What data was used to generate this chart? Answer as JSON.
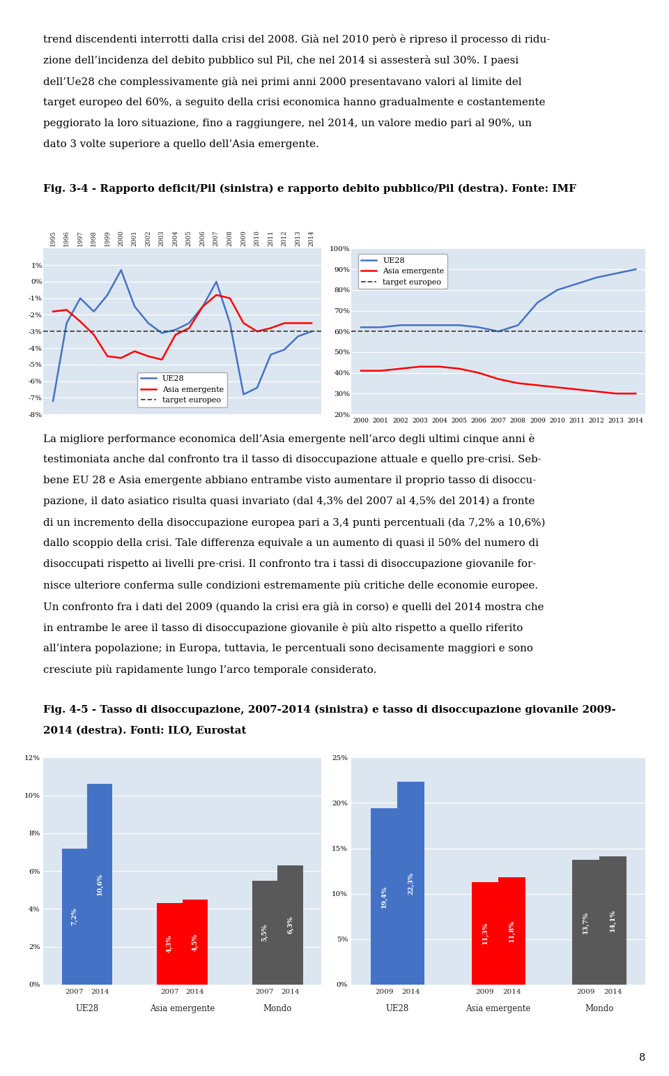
{
  "page_bg": "#ffffff",
  "text_color": "#000000",
  "fig_bg": "#dce6f1",
  "para1_lines": [
    "trend discendenti interrotti dalla crisi del 2008. Già nel 2010 però è ripreso il processo di ridu-",
    "zione dell’incidenza del debito pubblico sul Pil, che nel 2014 si assesterà sul 30%. I paesi",
    "dell’Ue28 che complessivamente già nei primi anni 2000 presentavano valori al limite del",
    "target europeo del 60%, a seguito della crisi economica hanno gradualmente e costantemente",
    "peggiorato la loro situazione, fino a raggiungere, nel 2014, un valore medio pari al 90%, un",
    "dato 3 volte superiore a quello dell’Asia emergente."
  ],
  "fig34_title": "Fig. 3-4 - Rapporto deficit/Pil (sinistra) e rapporto debito pubblico/Pil (destra). Fonte: IMF",
  "deficit_years": [
    1995,
    1996,
    1997,
    1998,
    1999,
    2000,
    2001,
    2002,
    2003,
    2004,
    2005,
    2006,
    2007,
    2008,
    2009,
    2010,
    2011,
    2012,
    2013,
    2014
  ],
  "deficit_ue28": [
    -7.2,
    -2.5,
    -1.0,
    -1.8,
    -0.8,
    0.7,
    -1.5,
    -2.5,
    -3.1,
    -2.9,
    -2.5,
    -1.5,
    0.0,
    -2.5,
    -6.8,
    -6.4,
    -4.4,
    -4.1,
    -3.3,
    -3.0
  ],
  "deficit_asia": [
    -1.8,
    -1.7,
    -2.4,
    -3.2,
    -4.5,
    -4.6,
    -4.2,
    -4.5,
    -4.7,
    -3.2,
    -2.8,
    -1.5,
    -0.8,
    -1.0,
    -2.5,
    -3.0,
    -2.8,
    -2.5,
    -2.5,
    -2.5
  ],
  "deficit_target": -3.0,
  "deficit_ylim": [
    -8,
    2
  ],
  "deficit_yticks": [
    1,
    0,
    -1,
    -2,
    -3,
    -4,
    -5,
    -6,
    -7,
    -8
  ],
  "deficit_ytick_labels": [
    "1%",
    "0%",
    "-1%",
    "-2%",
    "-3%",
    "-4%",
    "-5%",
    "-6%",
    "-7%",
    "-8%"
  ],
  "debt_years": [
    2000,
    2001,
    2002,
    2003,
    2004,
    2005,
    2006,
    2007,
    2008,
    2009,
    2010,
    2011,
    2012,
    2013,
    2014
  ],
  "debt_ue28": [
    62,
    62,
    63,
    63,
    63,
    63,
    62,
    60,
    63,
    74,
    80,
    83,
    86,
    88,
    90
  ],
  "debt_asia": [
    41,
    41,
    42,
    43,
    43,
    42,
    40,
    37,
    35,
    34,
    33,
    32,
    31,
    30,
    30
  ],
  "debt_target": 60,
  "debt_ylim": [
    20,
    100
  ],
  "debt_yticks": [
    20,
    30,
    40,
    50,
    60,
    70,
    80,
    90,
    100
  ],
  "debt_ytick_labels": [
    "20%",
    "30%",
    "40%",
    "50%",
    "60%",
    "70%",
    "80%",
    "90%",
    "100%"
  ],
  "ue28_color": "#4472c4",
  "asia_color": "#ff0000",
  "target_color": "#404040",
  "para2_lines": [
    "La migliore performance economica dell’Asia emergente nell’arco degli ultimi cinque anni è",
    "testimoniata anche dal confronto tra il tasso di disoccupazione attuale e quello pre-crisi. Seb-",
    "bene EU 28 e Asia emergente abbiano entrambe visto aumentare il proprio tasso di disoccu-",
    "pazione, il dato asiatico risulta quasi invariato (dal 4,3% del 2007 al 4,5% del 2014) a fronte",
    "di un incremento della disoccupazione europea pari a 3,4 punti percentuali (da 7,2% a 10,6%)",
    "dallo scoppio della crisi. Tale differenza equivale a un aumento di quasi il 50% del numero di",
    "disoccupati rispetto ai livelli pre-crisi. Il confronto tra i tassi di disoccupazione giovanile for-",
    "nisce ulteriore conferma sulle condizioni estremamente più critiche delle economie europee.",
    "Un confronto fra i dati del 2009 (quando la crisi era già in corso) e quelli del 2014 mostra che",
    "in entrambe le aree il tasso di disoccupazione giovanile è più alto rispetto a quello riferito",
    "all’intera popolazione; in Europa, tuttavia, le percentuali sono decisamente maggiori e sono",
    "cresciute più rapidamente lungo l’arco temporale considerato."
  ],
  "fig45_title_line1": "Fig. 4-5 - Tasso di disoccupazione, 2007-2014 (sinistra) e tasso di disoccupazione giovanile 2009-",
  "fig45_title_line2": "2014 (destra). Fonti: ILO, Eurostat",
  "unemp_values_ue28": [
    7.2,
    10.6
  ],
  "unemp_values_asia": [
    4.3,
    4.5
  ],
  "unemp_values_mondo": [
    5.5,
    6.3
  ],
  "unemp_ylim": [
    0,
    12
  ],
  "unemp_yticks": [
    0,
    2,
    4,
    6,
    8,
    10,
    12
  ],
  "unemp_ytick_labels": [
    "0%",
    "2%",
    "4%",
    "6%",
    "8%",
    "10%",
    "12%"
  ],
  "unemp_labels_ue28": [
    "7,2%",
    "10,6%"
  ],
  "unemp_labels_asia": [
    "4,3%",
    "4,5%"
  ],
  "unemp_labels_mondo": [
    "5,5%",
    "6,3%"
  ],
  "youth_values_ue28": [
    19.4,
    22.3
  ],
  "youth_values_asia": [
    11.3,
    11.8
  ],
  "youth_values_mondo": [
    13.7,
    14.1
  ],
  "youth_ylim": [
    0,
    25
  ],
  "youth_yticks": [
    0,
    5,
    10,
    15,
    20,
    25
  ],
  "youth_ytick_labels": [
    "0%",
    "5%",
    "10%",
    "15%",
    "20%",
    "25%"
  ],
  "youth_labels_ue28": [
    "19,4%",
    "22,3%"
  ],
  "youth_labels_asia": [
    "11,3%",
    "11,8%"
  ],
  "youth_labels_mondo": [
    "13,7%",
    "14,1%"
  ],
  "bar_color_ue28": "#4472c4",
  "bar_color_asia": "#ff0000",
  "bar_color_mondo": "#595959",
  "page_number": "8"
}
